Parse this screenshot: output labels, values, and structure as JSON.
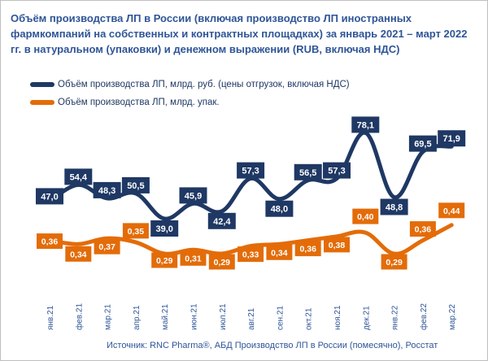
{
  "chart_data": {
    "type": "line",
    "title": "Объём производства ЛП в России (включая производство ЛП иностранных фармкомпаний на собственных и контрактных площадках) за январь 2021 – март 2022 гг. в натуральном (упаковки) и денежном выражении (RUB, включая НДС)",
    "categories": [
      "янв.21",
      "фев.21",
      "мар.21",
      "апр.21",
      "май.21",
      "июн.21",
      "июл.21",
      "авг.21",
      "сен.21",
      "окт.21",
      "ноя.21",
      "дек.21",
      "янв.22",
      "фев.22",
      "мар.22"
    ],
    "series": [
      {
        "name": "Объём производства ЛП, млрд. руб. (цены отгрузок, включая НДС)",
        "color": "#1f3864",
        "values": [
          47.0,
          54.4,
          48.3,
          50.5,
          39.0,
          45.9,
          42.4,
          57.3,
          48.0,
          56.5,
          57.3,
          78.1,
          48.8,
          69.5,
          71.9
        ],
        "labels": [
          "47,0",
          "54,4",
          "48,3",
          "50,5",
          "39,0",
          "45,9",
          "42,4",
          "57,3",
          "48,0",
          "56,5",
          "57,3",
          "78,1",
          "48,8",
          "69,5",
          "71,9"
        ]
      },
      {
        "name": "Объём производства ЛП, млрд. упак.",
        "color": "#e36c09",
        "values": [
          0.36,
          0.34,
          0.37,
          0.35,
          0.29,
          0.31,
          0.29,
          0.33,
          0.34,
          0.36,
          0.38,
          0.4,
          0.29,
          0.36,
          0.44
        ],
        "labels": [
          "0,36",
          "0,34",
          "0,37",
          "0,35",
          "0,29",
          "0,31",
          "0,29",
          "0,33",
          "0,34",
          "0,36",
          "0,38",
          "0,40",
          "0,29",
          "0,36",
          "0,44"
        ]
      }
    ],
    "legend_position": "top-left",
    "grid": false,
    "source": "Источник: RNC Pharma®, АБД Производство ЛП в России (помесячно), Росстат"
  }
}
